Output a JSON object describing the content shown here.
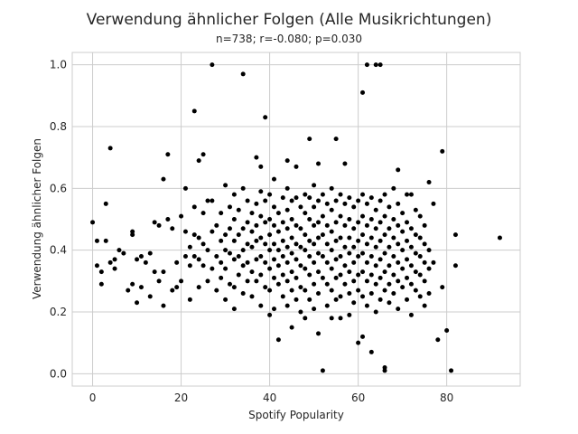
{
  "chart_data": {
    "type": "scatter",
    "title": "Verwendung ähnlicher Folgen (Alle Musikrichtungen)",
    "subtitle": "n=738; r=-0.080; p=0.030",
    "xlabel": "Spotify Popularity",
    "ylabel": "Verwendung ähnlicher Folgen",
    "xlim": [
      -4.6,
      96.6
    ],
    "ylim": [
      -0.04,
      1.04
    ],
    "xticks": [
      0,
      20,
      40,
      60,
      80
    ],
    "yticks": [
      0.0,
      0.2,
      0.4,
      0.6,
      0.8,
      1.0
    ],
    "xtick_labels": [
      "0",
      "20",
      "40",
      "60",
      "80"
    ],
    "ytick_labels": [
      "0.0",
      "0.2",
      "0.4",
      "0.6",
      "0.8",
      "1.0"
    ],
    "grid": true,
    "marker_color": "#000000",
    "points": [
      [
        0,
        0.49
      ],
      [
        1,
        0.43
      ],
      [
        1,
        0.35
      ],
      [
        2,
        0.33
      ],
      [
        2,
        0.29
      ],
      [
        3,
        0.55
      ],
      [
        3,
        0.43
      ],
      [
        4,
        0.73
      ],
      [
        4,
        0.36
      ],
      [
        5,
        0.37
      ],
      [
        5,
        0.34
      ],
      [
        6,
        0.4
      ],
      [
        7,
        0.39
      ],
      [
        8,
        0.27
      ],
      [
        9,
        0.29
      ],
      [
        9,
        0.45
      ],
      [
        9,
        0.46
      ],
      [
        10,
        0.37
      ],
      [
        10,
        0.23
      ],
      [
        11,
        0.38
      ],
      [
        11,
        0.28
      ],
      [
        12,
        0.36
      ],
      [
        13,
        0.25
      ],
      [
        13,
        0.39
      ],
      [
        14,
        0.49
      ],
      [
        14,
        0.33
      ],
      [
        15,
        0.48
      ],
      [
        15,
        0.3
      ],
      [
        16,
        0.63
      ],
      [
        16,
        0.22
      ],
      [
        16,
        0.33
      ],
      [
        17,
        0.5
      ],
      [
        17,
        0.71
      ],
      [
        18,
        0.47
      ],
      [
        18,
        0.27
      ],
      [
        19,
        0.36
      ],
      [
        19,
        0.28
      ],
      [
        20,
        0.51
      ],
      [
        20,
        0.3
      ],
      [
        21,
        0.6
      ],
      [
        21,
        0.46
      ],
      [
        21,
        0.38
      ],
      [
        22,
        0.41
      ],
      [
        22,
        0.35
      ],
      [
        22,
        0.24
      ],
      [
        23,
        0.85
      ],
      [
        23,
        0.54
      ],
      [
        23,
        0.45
      ],
      [
        23,
        0.38
      ],
      [
        24,
        0.69
      ],
      [
        24,
        0.44
      ],
      [
        24,
        0.37
      ],
      [
        24,
        0.28
      ],
      [
        25,
        0.71
      ],
      [
        25,
        0.52
      ],
      [
        25,
        0.42
      ],
      [
        25,
        0.35
      ],
      [
        26,
        0.56
      ],
      [
        26,
        0.4
      ],
      [
        26,
        0.3
      ],
      [
        27,
        1.0
      ],
      [
        27,
        0.56
      ],
      [
        27,
        0.46
      ],
      [
        27,
        0.34
      ],
      [
        28,
        0.48
      ],
      [
        28,
        0.38
      ],
      [
        28,
        0.27
      ],
      [
        29,
        0.52
      ],
      [
        29,
        0.43
      ],
      [
        29,
        0.36
      ],
      [
        29,
        0.31
      ],
      [
        30,
        0.61
      ],
      [
        30,
        0.45
      ],
      [
        30,
        0.4
      ],
      [
        30,
        0.34
      ],
      [
        30,
        0.24
      ],
      [
        31,
        0.54
      ],
      [
        31,
        0.47
      ],
      [
        31,
        0.39
      ],
      [
        31,
        0.29
      ],
      [
        32,
        0.58
      ],
      [
        32,
        0.5
      ],
      [
        32,
        0.43
      ],
      [
        32,
        0.37
      ],
      [
        32,
        0.28
      ],
      [
        32,
        0.21
      ],
      [
        33,
        0.53
      ],
      [
        33,
        0.45
      ],
      [
        33,
        0.38
      ],
      [
        33,
        0.32
      ],
      [
        34,
        0.97
      ],
      [
        34,
        0.6
      ],
      [
        34,
        0.47
      ],
      [
        34,
        0.4
      ],
      [
        34,
        0.35
      ],
      [
        34,
        0.26
      ],
      [
        35,
        0.56
      ],
      [
        35,
        0.49
      ],
      [
        35,
        0.42
      ],
      [
        35,
        0.36
      ],
      [
        35,
        0.3
      ],
      [
        36,
        0.52
      ],
      [
        36,
        0.46
      ],
      [
        36,
        0.41
      ],
      [
        36,
        0.33
      ],
      [
        36,
        0.25
      ],
      [
        37,
        0.7
      ],
      [
        37,
        0.55
      ],
      [
        37,
        0.48
      ],
      [
        37,
        0.43
      ],
      [
        37,
        0.37
      ],
      [
        37,
        0.3
      ],
      [
        38,
        0.67
      ],
      [
        38,
        0.59
      ],
      [
        38,
        0.51
      ],
      [
        38,
        0.44
      ],
      [
        38,
        0.38
      ],
      [
        38,
        0.32
      ],
      [
        38,
        0.22
      ],
      [
        39,
        0.83
      ],
      [
        39,
        0.56
      ],
      [
        39,
        0.49
      ],
      [
        39,
        0.42
      ],
      [
        39,
        0.36
      ],
      [
        39,
        0.28
      ],
      [
        40,
        0.58
      ],
      [
        40,
        0.5
      ],
      [
        40,
        0.45
      ],
      [
        40,
        0.4
      ],
      [
        40,
        0.34
      ],
      [
        40,
        0.27
      ],
      [
        40,
        0.19
      ],
      [
        41,
        0.63
      ],
      [
        41,
        0.54
      ],
      [
        41,
        0.48
      ],
      [
        41,
        0.42
      ],
      [
        41,
        0.37
      ],
      [
        41,
        0.31
      ],
      [
        41,
        0.21
      ],
      [
        42,
        0.52
      ],
      [
        42,
        0.46
      ],
      [
        42,
        0.4
      ],
      [
        42,
        0.35
      ],
      [
        42,
        0.29
      ],
      [
        42,
        0.11
      ],
      [
        43,
        0.57
      ],
      [
        43,
        0.49
      ],
      [
        43,
        0.43
      ],
      [
        43,
        0.38
      ],
      [
        43,
        0.32
      ],
      [
        43,
        0.25
      ],
      [
        44,
        0.69
      ],
      [
        44,
        0.6
      ],
      [
        44,
        0.53
      ],
      [
        44,
        0.47
      ],
      [
        44,
        0.41
      ],
      [
        44,
        0.36
      ],
      [
        44,
        0.3
      ],
      [
        44,
        0.22
      ],
      [
        45,
        0.56
      ],
      [
        45,
        0.5
      ],
      [
        45,
        0.44
      ],
      [
        45,
        0.39
      ],
      [
        45,
        0.33
      ],
      [
        45,
        0.27
      ],
      [
        45,
        0.15
      ],
      [
        46,
        0.67
      ],
      [
        46,
        0.57
      ],
      [
        46,
        0.48
      ],
      [
        46,
        0.42
      ],
      [
        46,
        0.37
      ],
      [
        46,
        0.31
      ],
      [
        46,
        0.24
      ],
      [
        47,
        0.54
      ],
      [
        47,
        0.47
      ],
      [
        47,
        0.41
      ],
      [
        47,
        0.35
      ],
      [
        47,
        0.28
      ],
      [
        47,
        0.2
      ],
      [
        48,
        0.58
      ],
      [
        48,
        0.52
      ],
      [
        48,
        0.45
      ],
      [
        48,
        0.4
      ],
      [
        48,
        0.34
      ],
      [
        48,
        0.27
      ],
      [
        48,
        0.18
      ],
      [
        49,
        0.76
      ],
      [
        49,
        0.57
      ],
      [
        49,
        0.5
      ],
      [
        49,
        0.43
      ],
      [
        49,
        0.38
      ],
      [
        49,
        0.32
      ],
      [
        49,
        0.24
      ],
      [
        50,
        0.61
      ],
      [
        50,
        0.54
      ],
      [
        50,
        0.48
      ],
      [
        50,
        0.42
      ],
      [
        50,
        0.36
      ],
      [
        50,
        0.29
      ],
      [
        50,
        0.21
      ],
      [
        51,
        0.68
      ],
      [
        51,
        0.56
      ],
      [
        51,
        0.49
      ],
      [
        51,
        0.44
      ],
      [
        51,
        0.39
      ],
      [
        51,
        0.33
      ],
      [
        51,
        0.26
      ],
      [
        51,
        0.13
      ],
      [
        52,
        0.58
      ],
      [
        52,
        0.51
      ],
      [
        52,
        0.45
      ],
      [
        52,
        0.38
      ],
      [
        52,
        0.31
      ],
      [
        52,
        0.01
      ],
      [
        53,
        0.55
      ],
      [
        53,
        0.48
      ],
      [
        53,
        0.42
      ],
      [
        53,
        0.36
      ],
      [
        53,
        0.29
      ],
      [
        53,
        0.22
      ],
      [
        54,
        0.6
      ],
      [
        54,
        0.53
      ],
      [
        54,
        0.46
      ],
      [
        54,
        0.4
      ],
      [
        54,
        0.34
      ],
      [
        54,
        0.27
      ],
      [
        54,
        0.18
      ],
      [
        55,
        0.76
      ],
      [
        55,
        0.56
      ],
      [
        55,
        0.49
      ],
      [
        55,
        0.43
      ],
      [
        55,
        0.37
      ],
      [
        55,
        0.31
      ],
      [
        55,
        0.24
      ],
      [
        56,
        0.58
      ],
      [
        56,
        0.51
      ],
      [
        56,
        0.44
      ],
      [
        56,
        0.38
      ],
      [
        56,
        0.32
      ],
      [
        56,
        0.25
      ],
      [
        56,
        0.18
      ],
      [
        57,
        0.68
      ],
      [
        57,
        0.55
      ],
      [
        57,
        0.48
      ],
      [
        57,
        0.41
      ],
      [
        57,
        0.35
      ],
      [
        57,
        0.29
      ],
      [
        58,
        0.57
      ],
      [
        58,
        0.5
      ],
      [
        58,
        0.44
      ],
      [
        58,
        0.39
      ],
      [
        58,
        0.33
      ],
      [
        58,
        0.26
      ],
      [
        58,
        0.19
      ],
      [
        59,
        0.54
      ],
      [
        59,
        0.47
      ],
      [
        59,
        0.41
      ],
      [
        59,
        0.36
      ],
      [
        59,
        0.3
      ],
      [
        59,
        0.23
      ],
      [
        60,
        0.56
      ],
      [
        60,
        0.49
      ],
      [
        60,
        0.43
      ],
      [
        60,
        0.38
      ],
      [
        60,
        0.32
      ],
      [
        60,
        0.27
      ],
      [
        60,
        0.1
      ],
      [
        61,
        0.91
      ],
      [
        61,
        0.58
      ],
      [
        61,
        0.51
      ],
      [
        61,
        0.45
      ],
      [
        61,
        0.39
      ],
      [
        61,
        0.33
      ],
      [
        61,
        0.25
      ],
      [
        61,
        0.12
      ],
      [
        62,
        1.0
      ],
      [
        62,
        0.55
      ],
      [
        62,
        0.48
      ],
      [
        62,
        0.42
      ],
      [
        62,
        0.36
      ],
      [
        62,
        0.3
      ],
      [
        62,
        0.22
      ],
      [
        63,
        0.57
      ],
      [
        63,
        0.5
      ],
      [
        63,
        0.44
      ],
      [
        63,
        0.38
      ],
      [
        63,
        0.32
      ],
      [
        63,
        0.26
      ],
      [
        63,
        0.07
      ],
      [
        64,
        1.0
      ],
      [
        64,
        0.53
      ],
      [
        64,
        0.47
      ],
      [
        64,
        0.41
      ],
      [
        64,
        0.35
      ],
      [
        64,
        0.29
      ],
      [
        64,
        0.2
      ],
      [
        65,
        1.0
      ],
      [
        65,
        0.56
      ],
      [
        65,
        0.49
      ],
      [
        65,
        0.43
      ],
      [
        65,
        0.37
      ],
      [
        65,
        0.31
      ],
      [
        65,
        0.24
      ],
      [
        66,
        0.58
      ],
      [
        66,
        0.51
      ],
      [
        66,
        0.45
      ],
      [
        66,
        0.39
      ],
      [
        66,
        0.33
      ],
      [
        66,
        0.27
      ],
      [
        66,
        0.02
      ],
      [
        66,
        0.01
      ],
      [
        67,
        0.54
      ],
      [
        67,
        0.47
      ],
      [
        67,
        0.41
      ],
      [
        67,
        0.35
      ],
      [
        67,
        0.29
      ],
      [
        67,
        0.23
      ],
      [
        68,
        0.6
      ],
      [
        68,
        0.5
      ],
      [
        68,
        0.44
      ],
      [
        68,
        0.38
      ],
      [
        68,
        0.32
      ],
      [
        68,
        0.26
      ],
      [
        69,
        0.66
      ],
      [
        69,
        0.55
      ],
      [
        69,
        0.48
      ],
      [
        69,
        0.42
      ],
      [
        69,
        0.36
      ],
      [
        69,
        0.3
      ],
      [
        69,
        0.21
      ],
      [
        70,
        0.52
      ],
      [
        70,
        0.46
      ],
      [
        70,
        0.4
      ],
      [
        70,
        0.34
      ],
      [
        70,
        0.28
      ],
      [
        71,
        0.58
      ],
      [
        71,
        0.49
      ],
      [
        71,
        0.43
      ],
      [
        71,
        0.37
      ],
      [
        71,
        0.31
      ],
      [
        71,
        0.24
      ],
      [
        72,
        0.58
      ],
      [
        72,
        0.47
      ],
      [
        72,
        0.41
      ],
      [
        72,
        0.35
      ],
      [
        72,
        0.29
      ],
      [
        72,
        0.19
      ],
      [
        73,
        0.53
      ],
      [
        73,
        0.45
      ],
      [
        73,
        0.39
      ],
      [
        73,
        0.33
      ],
      [
        73,
        0.27
      ],
      [
        74,
        0.51
      ],
      [
        74,
        0.44
      ],
      [
        74,
        0.38
      ],
      [
        74,
        0.32
      ],
      [
        74,
        0.25
      ],
      [
        75,
        0.48
      ],
      [
        75,
        0.42
      ],
      [
        75,
        0.36
      ],
      [
        75,
        0.3
      ],
      [
        75,
        0.22
      ],
      [
        76,
        0.62
      ],
      [
        76,
        0.4
      ],
      [
        76,
        0.34
      ],
      [
        76,
        0.26
      ],
      [
        77,
        0.55
      ],
      [
        77,
        0.36
      ],
      [
        78,
        0.11
      ],
      [
        79,
        0.72
      ],
      [
        79,
        0.28
      ],
      [
        80,
        0.14
      ],
      [
        81,
        0.01
      ],
      [
        82,
        0.45
      ],
      [
        82,
        0.35
      ],
      [
        92,
        0.44
      ]
    ]
  }
}
